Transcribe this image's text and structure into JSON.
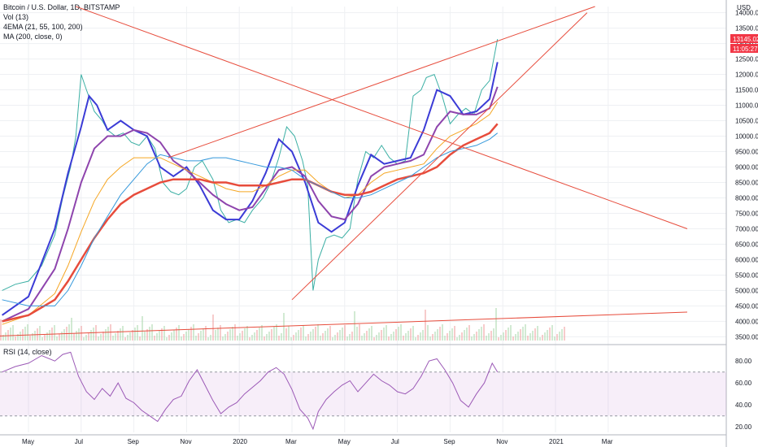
{
  "header": {
    "symbol": "Bitcoin / U.S. Dollar, 1D, BITSTAMP",
    "indicators": [
      "Vol (13)",
      "4EMA (21, 55, 100, 200)",
      "MA (200, close, 0)"
    ],
    "currency": "USD"
  },
  "price_badge": {
    "value": "13145.02",
    "countdown": "11:05:27",
    "color": "#f23645"
  },
  "rsi": {
    "label": "RSI (14, close)",
    "band_top": 70,
    "band_bottom": 30
  },
  "chart_data": [
    {
      "type": "candlestick",
      "title": "Bitcoin / U.S. Dollar, 1D, BITSTAMP",
      "ylabel": "USD",
      "ylim": [
        3300,
        14200
      ],
      "yticks": [
        3500,
        4000,
        4500,
        5000,
        5500,
        6000,
        6500,
        7000,
        7500,
        8000,
        8500,
        9000,
        9500,
        10000,
        10500,
        11000,
        11500,
        12000,
        12500,
        13000,
        13500,
        14000
      ],
      "xticks": [
        "May",
        "Jul",
        "Sep",
        "Nov",
        "2020",
        "Mar",
        "May",
        "Jul",
        "Sep",
        "Nov",
        "2021",
        "Mar"
      ],
      "xtick_months": [
        0,
        2,
        4,
        6,
        8,
        10,
        12,
        14,
        16,
        18,
        20,
        22
      ],
      "series": [
        {
          "name": "Price",
          "color": "#26a69a",
          "x": [
            -1,
            -0.5,
            0,
            0.5,
            1,
            1.3,
            1.6,
            1.8,
            2.0,
            2.2,
            2.5,
            2.8,
            3.0,
            3.3,
            3.6,
            3.9,
            4.2,
            4.5,
            4.8,
            5.1,
            5.4,
            5.7,
            6.0,
            6.3,
            6.6,
            7.0,
            7.3,
            7.6,
            7.9,
            8.2,
            8.5,
            8.9,
            9.2,
            9.5,
            9.8,
            10.1,
            10.4,
            10.6,
            10.8,
            11.0,
            11.3,
            11.6,
            11.9,
            12.2,
            12.5,
            12.8,
            13.1,
            13.4,
            13.7,
            14.0,
            14.3,
            14.6,
            14.9,
            15.1,
            15.4,
            15.7,
            16.0,
            16.3,
            16.6,
            16.9,
            17.2,
            17.5,
            17.8
          ],
          "y": [
            5000,
            5200,
            5300,
            5800,
            6800,
            8000,
            9000,
            10000,
            12000,
            11500,
            10800,
            10500,
            10200,
            10000,
            10100,
            9800,
            9700,
            10000,
            9600,
            8500,
            8200,
            8100,
            8300,
            9000,
            9200,
            8600,
            7600,
            7200,
            7300,
            7200,
            7600,
            8000,
            8500,
            9300,
            10300,
            10000,
            9200,
            8400,
            5000,
            6000,
            6700,
            6800,
            6700,
            7000,
            8600,
            9500,
            9300,
            9700,
            9300,
            9100,
            9200,
            11300,
            11500,
            11900,
            12000,
            11300,
            10400,
            10700,
            10900,
            10700,
            11500,
            11800,
            13145
          ]
        },
        {
          "name": "EMA 21",
          "color": "#3b3bd6",
          "x": [
            -1,
            0,
            1,
            1.5,
            2,
            2.3,
            2.6,
            3,
            3.5,
            4,
            4.5,
            5,
            5.5,
            6,
            6.5,
            7,
            7.5,
            8,
            8.5,
            9,
            9.5,
            10,
            10.5,
            11,
            11.5,
            12,
            12.5,
            13,
            13.5,
            14,
            14.5,
            15,
            15.5,
            16,
            16.5,
            17,
            17.5,
            17.8
          ],
          "y": [
            4200,
            4800,
            7000,
            8800,
            10300,
            11300,
            11000,
            10200,
            10500,
            10200,
            10000,
            9000,
            8700,
            9000,
            8400,
            7600,
            7300,
            7300,
            7900,
            8800,
            9900,
            9500,
            8500,
            7200,
            6900,
            7200,
            8400,
            9400,
            9100,
            9200,
            9300,
            10200,
            11500,
            11300,
            10700,
            10800,
            11200,
            12400
          ]
        },
        {
          "name": "EMA 55",
          "color": "#8e44ad",
          "x": [
            -1,
            0,
            1,
            1.5,
            2,
            2.5,
            3,
            3.5,
            4,
            4.5,
            5,
            5.5,
            6,
            6.5,
            7,
            7.5,
            8,
            8.5,
            9,
            9.5,
            10,
            10.5,
            11,
            11.5,
            12,
            12.5,
            13,
            13.5,
            14,
            14.5,
            15,
            15.5,
            16,
            16.5,
            17,
            17.5,
            17.8
          ],
          "y": [
            4000,
            4400,
            5700,
            7000,
            8500,
            9600,
            10000,
            10000,
            10200,
            10100,
            9800,
            9200,
            8900,
            8500,
            8100,
            7800,
            7600,
            7700,
            8300,
            8900,
            9000,
            8700,
            7900,
            7400,
            7300,
            7800,
            8700,
            9000,
            9100,
            9200,
            9400,
            10300,
            10800,
            10700,
            10700,
            10900,
            11600
          ]
        },
        {
          "name": "EMA 100",
          "color": "#f5a623",
          "x": [
            -1,
            0,
            1,
            1.5,
            2,
            2.5,
            3,
            3.5,
            4,
            4.5,
            5,
            5.5,
            6,
            6.5,
            7,
            7.5,
            8,
            8.5,
            9,
            9.5,
            10,
            10.5,
            11,
            11.5,
            12,
            12.5,
            13,
            13.5,
            14,
            14.5,
            15,
            15.5,
            16,
            16.5,
            17,
            17.5,
            17.8
          ],
          "y": [
            3900,
            4200,
            4900,
            5800,
            6900,
            7900,
            8600,
            9000,
            9300,
            9300,
            9300,
            9100,
            8900,
            8700,
            8500,
            8300,
            8200,
            8200,
            8400,
            8700,
            8900,
            8900,
            8500,
            8200,
            8000,
            8100,
            8500,
            8800,
            8900,
            9000,
            9100,
            9600,
            10000,
            10200,
            10400,
            10700,
            11100
          ]
        },
        {
          "name": "EMA 200",
          "color": "#e74c3c",
          "x": [
            -1,
            0,
            1,
            1.5,
            2,
            2.5,
            3,
            3.5,
            4,
            4.5,
            5,
            5.5,
            6,
            6.5,
            7,
            7.5,
            8,
            8.5,
            9,
            9.5,
            10,
            10.5,
            11,
            11.5,
            12,
            12.5,
            13,
            13.5,
            14,
            14.5,
            15,
            15.5,
            16,
            16.5,
            17,
            17.5,
            17.8
          ],
          "y": [
            4000,
            4200,
            4700,
            5300,
            6000,
            6700,
            7300,
            7800,
            8100,
            8300,
            8500,
            8600,
            8600,
            8600,
            8500,
            8500,
            8400,
            8400,
            8400,
            8500,
            8600,
            8600,
            8400,
            8200,
            8100,
            8100,
            8200,
            8400,
            8600,
            8700,
            8800,
            9000,
            9400,
            9700,
            9900,
            10100,
            10400
          ]
        },
        {
          "name": "MA 200",
          "color": "#3498db",
          "x": [
            -1,
            0,
            1,
            1.5,
            2,
            2.5,
            3,
            3.5,
            4,
            4.5,
            5,
            5.5,
            6,
            6.5,
            7,
            7.5,
            8,
            8.5,
            9,
            9.5,
            10,
            10.5,
            11,
            11.5,
            12,
            12.5,
            13,
            13.5,
            14,
            14.5,
            15,
            15.5,
            16,
            16.5,
            17,
            17.5,
            17.8
          ],
          "y": [
            4700,
            4500,
            4500,
            5000,
            5800,
            6700,
            7400,
            8100,
            8600,
            9100,
            9400,
            9300,
            9200,
            9200,
            9300,
            9300,
            9200,
            9100,
            9000,
            9000,
            8900,
            8600,
            8400,
            8200,
            8000,
            8000,
            8100,
            8300,
            8500,
            8700,
            9000,
            9300,
            9500,
            9600,
            9700,
            9900,
            10100
          ]
        }
      ],
      "trendlines": [
        {
          "color": "#e74c3c",
          "x": [
            1.8,
            25
          ],
          "y": [
            14200,
            7000
          ]
        },
        {
          "color": "#e74c3c",
          "x": [
            5.3,
            21.5
          ],
          "y": [
            9300,
            14200
          ]
        },
        {
          "color": "#e74c3c",
          "x": [
            10.0,
            21.2
          ],
          "y": [
            4700,
            14000
          ]
        },
        {
          "color": "#e74c3c",
          "x": [
            -2,
            25
          ],
          "y": [
            3500,
            4300
          ]
        }
      ]
    },
    {
      "type": "line",
      "title": "RSI (14, close)",
      "ylim": [
        15,
        92
      ],
      "yticks": [
        20,
        40,
        60,
        80
      ],
      "series": [
        {
          "name": "RSI",
          "color": "#9b59b6",
          "x": [
            -1,
            -0.5,
            0,
            0.5,
            1,
            1.3,
            1.6,
            1.9,
            2.2,
            2.5,
            2.8,
            3.1,
            3.4,
            3.7,
            4.0,
            4.3,
            4.6,
            4.9,
            5.2,
            5.5,
            5.8,
            6.1,
            6.4,
            6.7,
            7.0,
            7.3,
            7.6,
            7.9,
            8.2,
            8.5,
            8.8,
            9.1,
            9.4,
            9.7,
            10.0,
            10.3,
            10.6,
            10.8,
            11.0,
            11.3,
            11.6,
            11.9,
            12.2,
            12.5,
            12.8,
            13.1,
            13.4,
            13.7,
            14.0,
            14.3,
            14.6,
            14.9,
            15.2,
            15.5,
            15.8,
            16.1,
            16.4,
            16.7,
            17.0,
            17.3,
            17.6,
            17.8
          ],
          "y": [
            70,
            75,
            78,
            85,
            80,
            86,
            88,
            66,
            52,
            45,
            55,
            48,
            60,
            46,
            42,
            35,
            30,
            25,
            36,
            45,
            48,
            62,
            72,
            58,
            44,
            32,
            38,
            42,
            50,
            56,
            62,
            70,
            74,
            68,
            54,
            36,
            28,
            18,
            34,
            45,
            52,
            58,
            62,
            52,
            60,
            68,
            62,
            58,
            52,
            50,
            55,
            66,
            80,
            82,
            72,
            60,
            44,
            38,
            50,
            60,
            78,
            70
          ]
        }
      ]
    }
  ]
}
